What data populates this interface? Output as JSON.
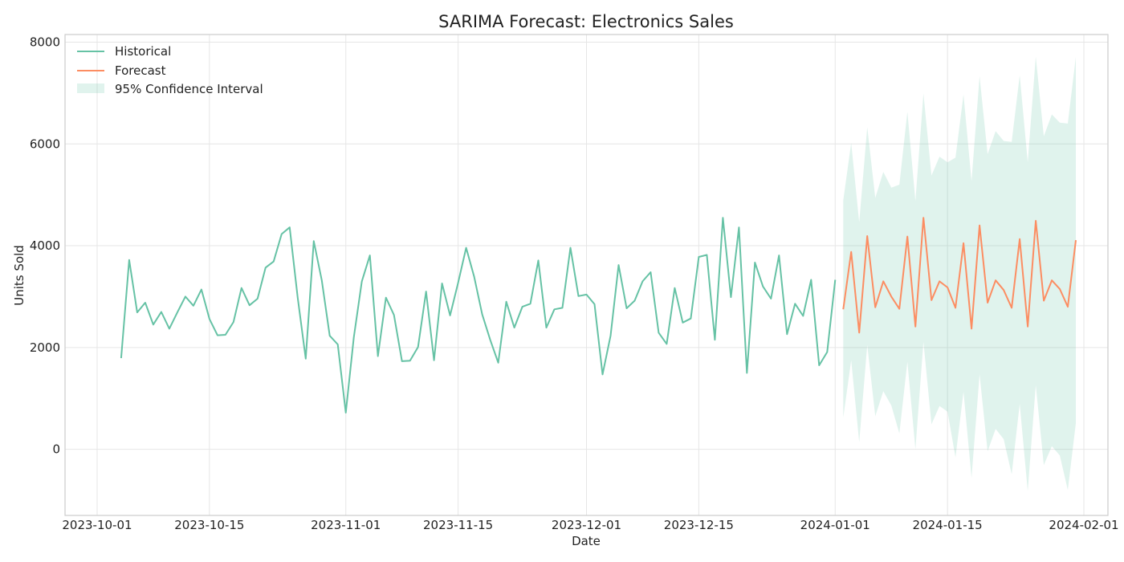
{
  "chart_data": {
    "type": "line",
    "title": "SARIMA Forecast: Electronics Sales",
    "xlabel": "Date",
    "ylabel": "Units Sold",
    "xlim": [
      "2023-09-27",
      "2024-02-04"
    ],
    "ylim": [
      -1300,
      8150
    ],
    "grid": true,
    "legend_position": "top-left",
    "x_ticks": [
      "2023-10-01",
      "2023-10-15",
      "2023-11-01",
      "2023-11-15",
      "2023-12-01",
      "2023-12-15",
      "2024-01-01",
      "2024-01-15",
      "2024-02-01"
    ],
    "y_ticks": [
      0,
      2000,
      4000,
      6000,
      8000
    ],
    "colors": {
      "historical": "#66c2a5",
      "forecast": "#fc8d62",
      "ci_fill": "#66c2a5"
    },
    "series": [
      {
        "name": "Historical",
        "start_date": "2023-10-04",
        "values": [
          1790,
          3720,
          2690,
          2880,
          2450,
          2700,
          2370,
          2690,
          3000,
          2820,
          3140,
          2560,
          2240,
          2250,
          2500,
          3170,
          2830,
          2960,
          3570,
          3690,
          4230,
          4360,
          2980,
          1780,
          4090,
          3320,
          2230,
          2060,
          720,
          2200,
          3300,
          3810,
          1830,
          2980,
          2640,
          1730,
          1740,
          2010,
          3100,
          1750,
          3260,
          2630,
          3270,
          3960,
          3390,
          2650,
          2150,
          1700,
          2900,
          2390,
          2800,
          2860,
          3710,
          2390,
          2750,
          2780,
          3960,
          3010,
          3040,
          2850,
          1470,
          2230,
          3620,
          2770,
          2920,
          3300,
          3480,
          2290,
          2070,
          3170,
          2490,
          2570,
          3780,
          3820,
          2150,
          4550,
          2990,
          4360,
          1500,
          3670,
          3200,
          2960,
          3810,
          2260,
          2860,
          2620,
          3330,
          1650,
          1910,
          3330
        ]
      },
      {
        "name": "Forecast",
        "start_date": "2024-01-02",
        "values": [
          2750,
          3880,
          2290,
          4190,
          2790,
          3300,
          3000,
          2760,
          4180,
          2410,
          4550,
          2930,
          3300,
          3180,
          2780,
          4050,
          2370,
          4400,
          2880,
          3320,
          3130,
          2780,
          4130,
          2410,
          4490,
          2920,
          3320,
          3150,
          2800,
          4110
        ]
      }
    ],
    "confidence_interval": {
      "name": "95% Confidence Interval",
      "start_date": "2024-01-02",
      "upper": [
        4890,
        6020,
        4460,
        6330,
        4940,
        5450,
        5140,
        5200,
        6630,
        4880,
        6990,
        5380,
        5750,
        5640,
        5730,
        6970,
        5270,
        7330,
        5800,
        6250,
        6060,
        6040,
        7350,
        5640,
        7720,
        6150,
        6580,
        6420,
        6400,
        7710
      ],
      "lower": [
        620,
        1750,
        140,
        2050,
        650,
        1140,
        860,
        310,
        1720,
        0,
        2110,
        490,
        850,
        740,
        -160,
        1130,
        -560,
        1470,
        -40,
        400,
        200,
        -490,
        890,
        -820,
        1260,
        -310,
        60,
        -120,
        -800,
        510
      ]
    }
  }
}
